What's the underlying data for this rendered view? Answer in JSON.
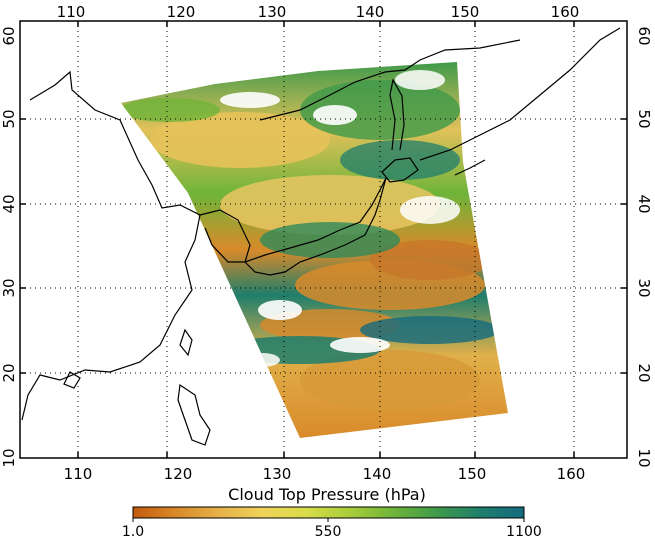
{
  "map": {
    "lon_labels": [
      "110",
      "120",
      "130",
      "140",
      "150",
      "160"
    ],
    "lat_labels": [
      "10",
      "20",
      "30",
      "40",
      "50",
      "60"
    ],
    "grid": "dotted",
    "swath_description": "satellite swath of cloud top pressure over Japan, Korea and the western North Pacific"
  },
  "colorbar": {
    "title": "Cloud Top Pressure (hPa)",
    "min_label": "1.0",
    "mid_label": "550",
    "max_label": "1100",
    "colors": [
      "#c25a0e",
      "#d98a2a",
      "#e6b24a",
      "#efd35a",
      "#d8dc4a",
      "#a8cc3a",
      "#6fb43a",
      "#3f9a4a",
      "#1f7e6c",
      "#146a7e"
    ]
  },
  "colors": {
    "coastline": "#000000",
    "cloud_free": "#ffffff"
  }
}
